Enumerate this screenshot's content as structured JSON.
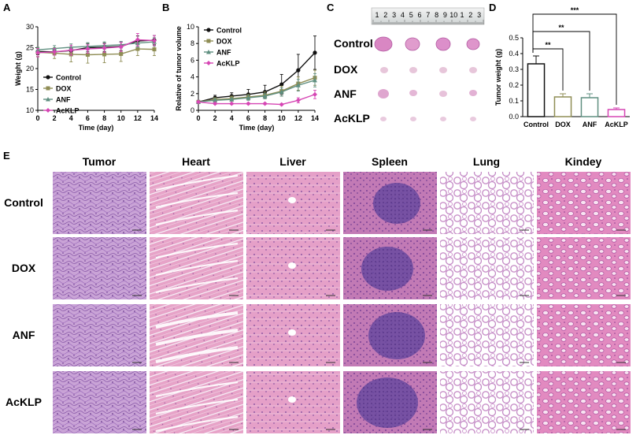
{
  "panels": {
    "A": "A",
    "B": "B",
    "C": "C",
    "D": "D",
    "E": "E"
  },
  "colors": {
    "Control": "#111111",
    "DOX": "#8f8d55",
    "ANF": "#5f8f80",
    "AcKLP": "#d646b4"
  },
  "chart_data": [
    {
      "id": "A",
      "type": "line",
      "xlabel": "Time (day)",
      "ylabel": "Weight (g)",
      "xlim": [
        0,
        14
      ],
      "ylim": [
        10,
        30
      ],
      "xticks": [
        0,
        2,
        4,
        6,
        8,
        10,
        12,
        14
      ],
      "yticks": [
        10,
        15,
        20,
        25,
        30
      ],
      "legend": "bottom-left",
      "x": [
        0,
        2,
        4,
        6,
        8,
        10,
        12,
        14
      ],
      "series": [
        {
          "name": "Control",
          "values": [
            24.1,
            24.0,
            24.3,
            25.0,
            25.1,
            25.3,
            26.6,
            26.8
          ],
          "err": [
            0.8,
            0.8,
            0.9,
            1.0,
            1.0,
            1.0,
            1.2,
            1.1
          ]
        },
        {
          "name": "DOX",
          "values": [
            23.9,
            23.7,
            23.4,
            23.3,
            23.4,
            23.5,
            24.7,
            24.6
          ],
          "err": [
            1.0,
            1.3,
            1.8,
            2.0,
            2.0,
            1.8,
            1.6,
            1.5
          ]
        },
        {
          "name": "ANF",
          "values": [
            24.5,
            24.8,
            25.1,
            25.3,
            25.5,
            25.7,
            26.1,
            26.4
          ],
          "err": [
            0.6,
            0.7,
            0.8,
            0.9,
            0.9,
            0.8,
            1.0,
            1.0
          ]
        },
        {
          "name": "AcKLP",
          "values": [
            23.8,
            24.0,
            24.4,
            24.7,
            24.9,
            25.2,
            26.9,
            26.7
          ],
          "err": [
            1.0,
            0.8,
            1.2,
            1.0,
            1.0,
            1.1,
            1.5,
            1.2
          ]
        }
      ]
    },
    {
      "id": "B",
      "type": "line",
      "xlabel": "Time (day)",
      "ylabel": "Relative of tumor volume",
      "xlim": [
        0,
        14
      ],
      "ylim": [
        0,
        10
      ],
      "xticks": [
        0,
        2,
        4,
        6,
        8,
        10,
        12,
        14
      ],
      "yticks": [
        0,
        2,
        4,
        6,
        8,
        10
      ],
      "legend": "top-left",
      "x": [
        0,
        2,
        4,
        6,
        8,
        10,
        12,
        14
      ],
      "series": [
        {
          "name": "Control",
          "values": [
            1.0,
            1.5,
            1.7,
            1.9,
            2.2,
            3.1,
            4.8,
            6.9
          ],
          "err": [
            0.2,
            0.3,
            0.4,
            0.6,
            0.8,
            1.2,
            1.9,
            2.0
          ]
        },
        {
          "name": "DOX",
          "values": [
            1.0,
            1.3,
            1.4,
            1.6,
            1.8,
            2.3,
            3.2,
            3.9
          ],
          "err": [
            0.1,
            0.2,
            0.3,
            0.3,
            0.4,
            0.6,
            0.8,
            0.9
          ]
        },
        {
          "name": "ANF",
          "values": [
            1.0,
            1.2,
            1.3,
            1.5,
            1.7,
            2.2,
            3.0,
            3.6
          ],
          "err": [
            0.1,
            0.2,
            0.2,
            0.3,
            0.3,
            0.5,
            0.7,
            0.8
          ]
        },
        {
          "name": "AcKLP",
          "values": [
            1.0,
            0.8,
            0.8,
            0.8,
            0.8,
            0.7,
            1.2,
            1.9
          ],
          "err": [
            0.1,
            0.1,
            0.1,
            0.1,
            0.1,
            0.1,
            0.3,
            0.5
          ]
        }
      ]
    },
    {
      "id": "D",
      "type": "bar",
      "ylabel": "Tumor weight (g)",
      "ylim": [
        0,
        0.5
      ],
      "yticks": [
        0.0,
        0.1,
        0.2,
        0.3,
        0.4,
        0.5
      ],
      "categories": [
        "Control",
        "DOX",
        "ANF",
        "AcKLP"
      ],
      "values": [
        0.335,
        0.125,
        0.12,
        0.045
      ],
      "err": [
        0.05,
        0.02,
        0.025,
        0.01
      ],
      "significance": [
        {
          "from": 0,
          "to": 1,
          "label": "**"
        },
        {
          "from": 0,
          "to": 2,
          "label": "**"
        },
        {
          "from": 0,
          "to": 3,
          "label": "***"
        }
      ]
    }
  ],
  "panelC": {
    "rows": [
      "Control",
      "DOX",
      "ANF",
      "AcKLP"
    ],
    "ruler_numbers": [
      "1",
      "2",
      "3",
      "4",
      "5",
      "6",
      "7",
      "8",
      "9",
      "10",
      "1",
      "2",
      "3"
    ]
  },
  "panelE": {
    "columns": [
      "Tumor",
      "Heart",
      "Liver",
      "Spleen",
      "Lung",
      "Kindey"
    ],
    "rows": [
      "Control",
      "DOX",
      "ANF",
      "AcKLP"
    ]
  }
}
